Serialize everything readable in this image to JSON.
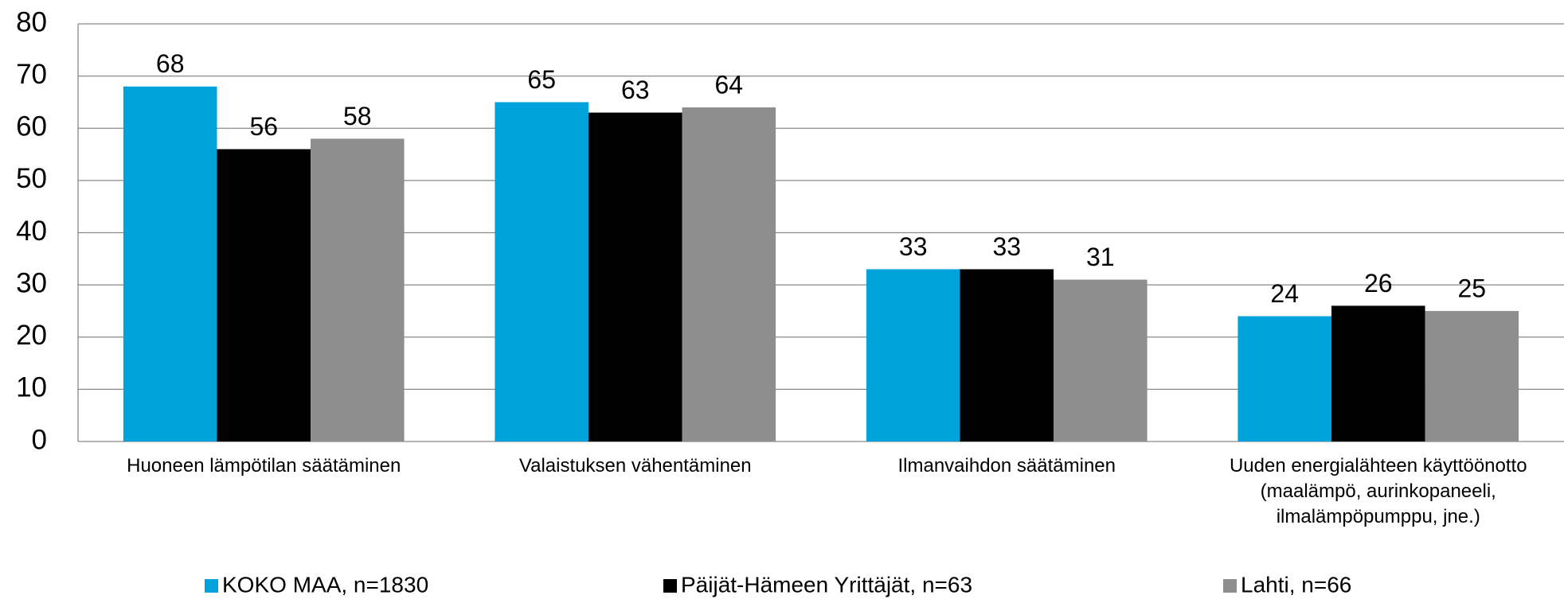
{
  "chart_data": {
    "type": "bar",
    "categories": [
      "Huoneen lämpötilan säätäminen",
      "Valaistuksen vähentäminen",
      "Ilmanvaihdon säätäminen",
      "Uuden energialähteen käyttöönotto\n(maalämpö, aurinkopaneeli,\nilmalämpöpumppu, jne.)"
    ],
    "series": [
      {
        "name": "KOKO MAA, n=1830",
        "color": "#00a2db",
        "values": [
          68,
          65,
          33,
          24
        ]
      },
      {
        "name": "Päijät-Hämeen Yrittäjät, n=63",
        "color": "#000000",
        "values": [
          56,
          63,
          33,
          26
        ]
      },
      {
        "name": "Lahti, n=66",
        "color": "#8e8e8e",
        "values": [
          58,
          64,
          31,
          25
        ]
      }
    ],
    "ylim": [
      0,
      80
    ],
    "yticks": [
      0,
      10,
      20,
      30,
      40,
      50,
      60,
      70,
      80
    ],
    "grid": true,
    "legend": "bottom"
  }
}
